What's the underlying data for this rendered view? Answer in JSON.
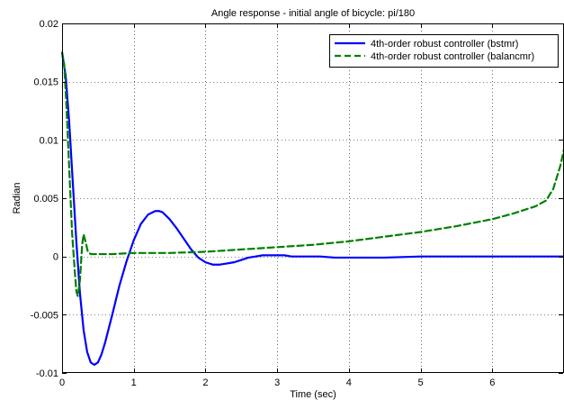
{
  "chart_data": {
    "type": "line",
    "title": "Angle response - initial angle of bicycle: pi/180",
    "xlabel": "Time (sec)",
    "ylabel": "Radian",
    "xlim": [
      0,
      7
    ],
    "ylim": [
      -0.01,
      0.02
    ],
    "xticks": [
      0,
      1,
      2,
      3,
      4,
      5,
      6
    ],
    "xtick_labels": [
      "0",
      "1",
      "2",
      "3",
      "4",
      "5",
      "6"
    ],
    "yticks": [
      -0.01,
      -0.005,
      0,
      0.005,
      0.01,
      0.015,
      0.02
    ],
    "ytick_labels": [
      "-0.01",
      "-0.005",
      "0",
      "0.005",
      "0.01",
      "0.015",
      "0.02"
    ],
    "grid": true,
    "legend_position": "top-right",
    "series": [
      {
        "name": "4th-order robust controller (bstmr)",
        "color": "#0000ff",
        "style": "solid",
        "x": [
          0,
          0.05,
          0.1,
          0.15,
          0.2,
          0.25,
          0.3,
          0.35,
          0.4,
          0.45,
          0.5,
          0.55,
          0.6,
          0.7,
          0.8,
          0.9,
          1.0,
          1.1,
          1.2,
          1.3,
          1.35,
          1.4,
          1.5,
          1.6,
          1.7,
          1.8,
          1.9,
          2.0,
          2.1,
          2.2,
          2.3,
          2.4,
          2.5,
          2.6,
          2.7,
          2.8,
          2.9,
          3.0,
          3.1,
          3.2,
          3.4,
          3.6,
          3.8,
          4.0,
          4.5,
          5.0,
          5.5,
          6.0,
          6.5,
          7.0
        ],
        "y": [
          0.0175,
          0.0155,
          0.0115,
          0.0063,
          0.0012,
          -0.0032,
          -0.0063,
          -0.0082,
          -0.0091,
          -0.0093,
          -0.0091,
          -0.0084,
          -0.0074,
          -0.005,
          -0.0025,
          -0.0004,
          0.0014,
          0.0028,
          0.0036,
          0.0039,
          0.0039,
          0.0038,
          0.0032,
          0.0024,
          0.0015,
          0.0006,
          -0.0001,
          -0.0005,
          -0.0007,
          -0.0007,
          -0.0006,
          -0.0005,
          -0.0003,
          -0.0001,
          0.0,
          0.0001,
          0.0001,
          0.0001,
          0.0001,
          0.0,
          0.0,
          0.0,
          -0.0001,
          -0.0001,
          -0.0001,
          0.0,
          0.0,
          0.0,
          0.0,
          0.0
        ]
      },
      {
        "name": "4th-order robust controller (balancmr)",
        "color": "#008000",
        "style": "dashed",
        "x": [
          0,
          0.03,
          0.06,
          0.1,
          0.14,
          0.18,
          0.2,
          0.22,
          0.25,
          0.28,
          0.3,
          0.33,
          0.36,
          0.4,
          0.5,
          0.7,
          1.0,
          1.5,
          2.0,
          2.5,
          3.0,
          3.5,
          4.0,
          4.5,
          5.0,
          5.5,
          6.0,
          6.3,
          6.6,
          6.75,
          6.85,
          6.95,
          7.0
        ],
        "y": [
          0.0175,
          0.0165,
          0.013,
          0.0075,
          0.002,
          -0.0015,
          -0.003,
          -0.0034,
          -0.002,
          0.001,
          0.0019,
          0.0012,
          0.0004,
          0.0002,
          0.0002,
          0.0002,
          0.0003,
          0.0003,
          0.0004,
          0.0006,
          0.0008,
          0.001,
          0.0013,
          0.0017,
          0.0021,
          0.0026,
          0.0032,
          0.0037,
          0.0043,
          0.0048,
          0.0058,
          0.0078,
          0.0092
        ]
      }
    ]
  }
}
